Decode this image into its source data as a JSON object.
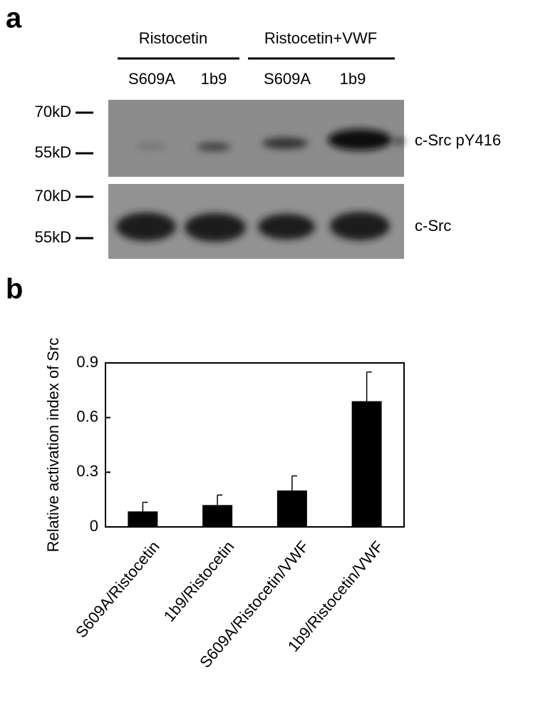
{
  "panel_labels": [
    "a",
    "b"
  ],
  "blot": {
    "groups": [
      "Ristocetin",
      "Ristocetin+VWF"
    ],
    "lanes": [
      "S609A",
      "1b9",
      "S609A",
      "1b9"
    ],
    "markers_top": [
      "70kD",
      "55kD"
    ],
    "markers_bottom": [
      "70kD",
      "55kD"
    ],
    "row_labels": [
      "c-Src pY416",
      "c-Src"
    ]
  },
  "chart_data": {
    "type": "bar",
    "ylabel": "Relative activation index of Src",
    "categories": [
      "S609A/Ristocetin",
      "1b9/Ristocetin",
      "S609A/Ristocetin/VWF",
      "1b9/Ristocetin/VWF"
    ],
    "values": [
      0.085,
      0.12,
      0.2,
      0.69
    ],
    "errors": [
      0.05,
      0.055,
      0.08,
      0.16
    ],
    "color": "#000000",
    "ylim": [
      0,
      0.9
    ],
    "yticks": [
      0,
      0.3,
      0.6,
      0.9
    ],
    "grid": false
  }
}
